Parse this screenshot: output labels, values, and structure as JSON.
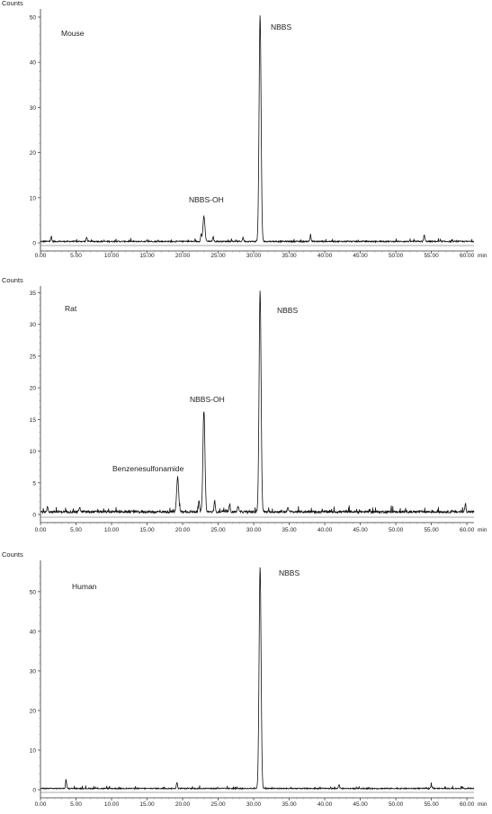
{
  "chart_data": [
    {
      "type": "line",
      "species_label": "Mouse",
      "ylabel": "Counts",
      "xunit": "min",
      "xlim": [
        0,
        61
      ],
      "ylim": [
        0,
        51
      ],
      "x_ticks": [
        "0.00",
        "5.00",
        "10.00",
        "15.00",
        "20.00",
        "25.00",
        "30.00",
        "35.00",
        "40.00",
        "45.00",
        "50.00",
        "55.00",
        "60.00"
      ],
      "y_ticks": [
        0,
        10,
        20,
        30,
        40,
        50
      ],
      "baseline": 0.3,
      "peaks": [
        {
          "label": "NBBS-OH",
          "x": 23.0,
          "y": 5.5
        },
        {
          "label": "NBBS",
          "x": 30.9,
          "y": 50
        }
      ],
      "minor_peaks": [
        {
          "x": 1.5,
          "y": 1.0
        },
        {
          "x": 6.5,
          "y": 0.9
        },
        {
          "x": 22.6,
          "y": 1.5
        },
        {
          "x": 24.3,
          "y": 1.0
        },
        {
          "x": 28.5,
          "y": 0.9
        },
        {
          "x": 38.0,
          "y": 1.3
        },
        {
          "x": 54.0,
          "y": 1.5
        }
      ]
    },
    {
      "type": "line",
      "species_label": "Rat",
      "ylabel": "Counts",
      "xunit": "min",
      "xlim": [
        0,
        61
      ],
      "ylim": [
        0,
        35.5
      ],
      "x_ticks": [
        "0.00",
        "5.00",
        "10.00",
        "15.00",
        "20.00",
        "25.00",
        "30.00",
        "35.00",
        "40.00",
        "45.00",
        "50.00",
        "55.00",
        "60.00"
      ],
      "y_ticks": [
        0,
        5,
        10,
        15,
        20,
        25,
        30,
        35
      ],
      "baseline": 0.4,
      "peaks": [
        {
          "label": "Benzenesulfonamide",
          "x": 19.3,
          "y": 5.5
        },
        {
          "label": "NBBS-OH",
          "x": 23.0,
          "y": 16
        },
        {
          "label": "NBBS",
          "x": 30.9,
          "y": 35
        }
      ],
      "minor_peaks": [
        {
          "x": 1.0,
          "y": 0.8
        },
        {
          "x": 5.5,
          "y": 0.8
        },
        {
          "x": 22.3,
          "y": 1.7
        },
        {
          "x": 24.5,
          "y": 1.8
        },
        {
          "x": 26.6,
          "y": 1.2
        },
        {
          "x": 27.8,
          "y": 1.0
        },
        {
          "x": 34.8,
          "y": 0.8
        },
        {
          "x": 59.8,
          "y": 1.3
        }
      ]
    },
    {
      "type": "line",
      "species_label": "Human",
      "ylabel": "Counts",
      "xunit": "min",
      "xlim": [
        0,
        61
      ],
      "ylim": [
        0,
        57
      ],
      "x_ticks": [
        "0.00",
        "5.00",
        "10.00",
        "15.00",
        "20.00",
        "25.00",
        "30.00",
        "35.00",
        "40.00",
        "45.00",
        "50.00",
        "55.00",
        "60.00"
      ],
      "y_ticks": [
        0,
        10,
        20,
        30,
        40,
        50
      ],
      "baseline": 0.3,
      "peaks": [
        {
          "label": "NBBS",
          "x": 30.9,
          "y": 56
        }
      ],
      "minor_peaks": [
        {
          "x": 3.6,
          "y": 2.0
        },
        {
          "x": 19.2,
          "y": 1.5
        },
        {
          "x": 42.0,
          "y": 1.0
        },
        {
          "x": 55.0,
          "y": 0.8
        }
      ]
    }
  ]
}
